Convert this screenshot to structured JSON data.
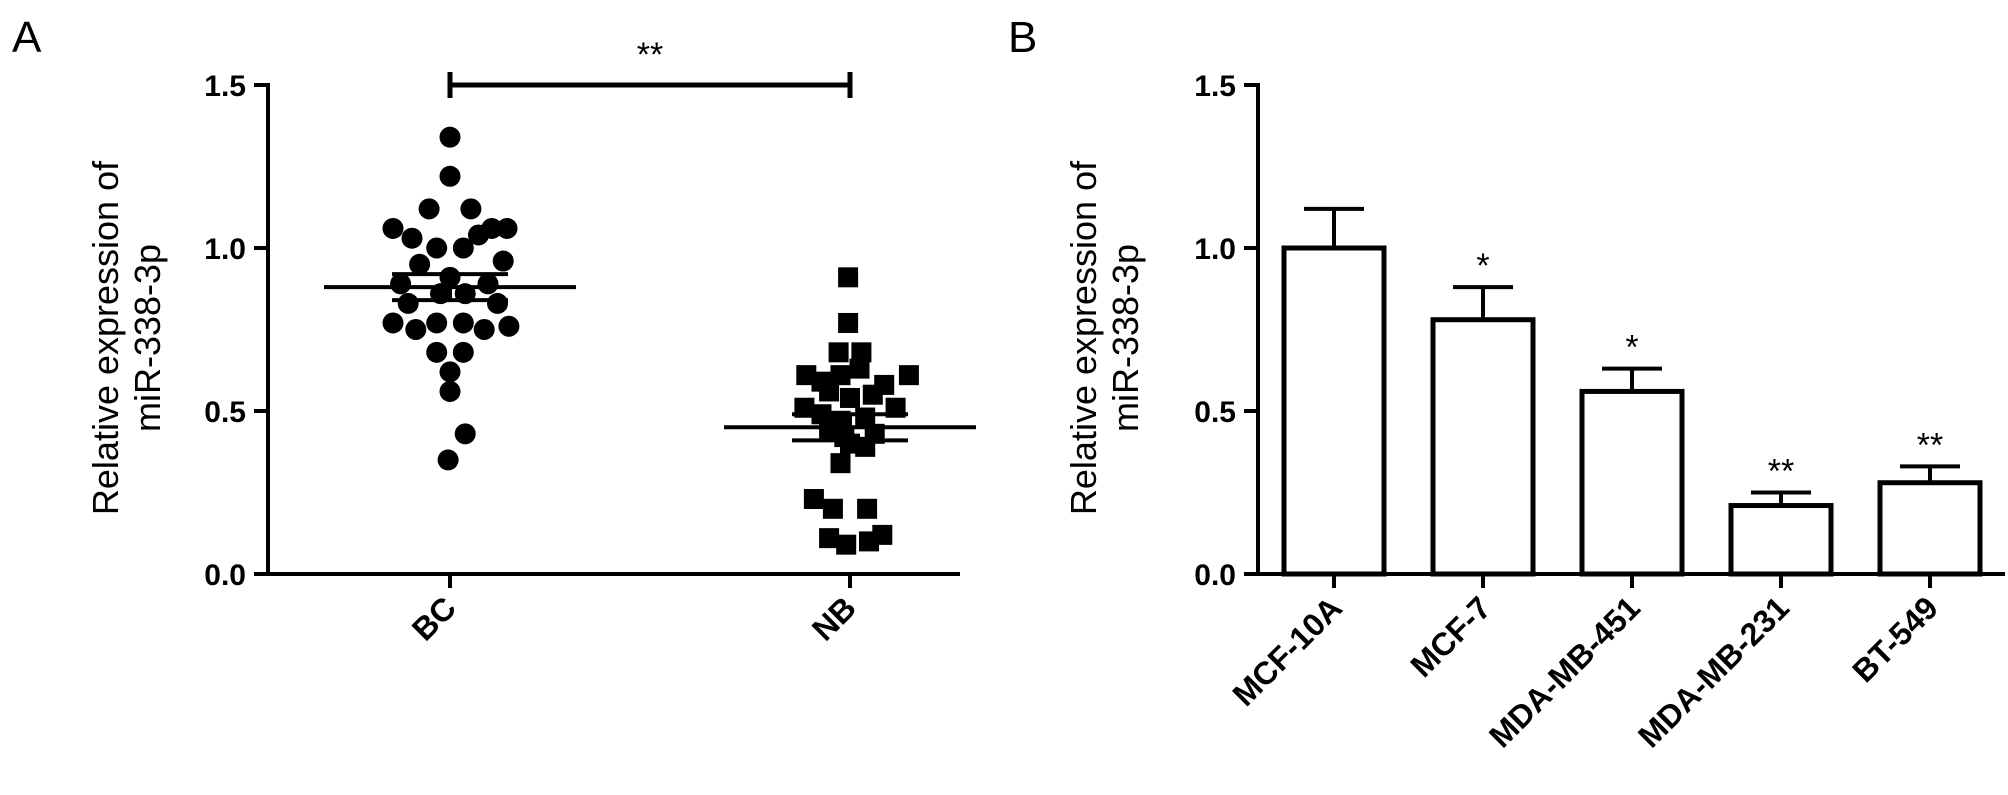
{
  "chart_data": [
    {
      "panel": "A",
      "type": "scatter",
      "ylabel_lines": [
        "Relative expression of",
        "miR-338-3p"
      ],
      "ylim": [
        0.0,
        1.5
      ],
      "yticks": [
        "0.0",
        "0.5",
        "1.0",
        "1.5"
      ],
      "categories": [
        "BC",
        "NB"
      ],
      "significance": "**",
      "groups": [
        {
          "category": "BC",
          "marker": "circle",
          "mean": 0.88,
          "sem": 0.04,
          "points": [
            {
              "x": 0.0,
              "y": 1.34
            },
            {
              "x": 0.0,
              "y": 1.22
            },
            {
              "x": -0.11,
              "y": 1.12
            },
            {
              "x": 0.11,
              "y": 1.12
            },
            {
              "x": -0.3,
              "y": 1.06
            },
            {
              "x": 0.22,
              "y": 1.06
            },
            {
              "x": 0.3,
              "y": 1.06
            },
            {
              "x": -0.2,
              "y": 1.03
            },
            {
              "x": 0.15,
              "y": 1.04
            },
            {
              "x": -0.07,
              "y": 1.0
            },
            {
              "x": 0.07,
              "y": 1.0
            },
            {
              "x": -0.16,
              "y": 0.95
            },
            {
              "x": 0.28,
              "y": 0.96
            },
            {
              "x": -0.26,
              "y": 0.89
            },
            {
              "x": 0.0,
              "y": 0.91
            },
            {
              "x": 0.2,
              "y": 0.89
            },
            {
              "x": -0.05,
              "y": 0.86
            },
            {
              "x": 0.08,
              "y": 0.86
            },
            {
              "x": -0.22,
              "y": 0.83
            },
            {
              "x": 0.25,
              "y": 0.83
            },
            {
              "x": -0.3,
              "y": 0.77
            },
            {
              "x": -0.07,
              "y": 0.77
            },
            {
              "x": 0.07,
              "y": 0.77
            },
            {
              "x": 0.31,
              "y": 0.76
            },
            {
              "x": -0.18,
              "y": 0.75
            },
            {
              "x": 0.18,
              "y": 0.75
            },
            {
              "x": -0.07,
              "y": 0.68
            },
            {
              "x": 0.07,
              "y": 0.68
            },
            {
              "x": 0.0,
              "y": 0.62
            },
            {
              "x": 0.0,
              "y": 0.56
            },
            {
              "x": 0.08,
              "y": 0.43
            },
            {
              "x": -0.01,
              "y": 0.35
            }
          ]
        },
        {
          "category": "NB",
          "marker": "square",
          "mean": 0.45,
          "sem": 0.04,
          "points": [
            {
              "x": -0.01,
              "y": 0.91
            },
            {
              "x": -0.01,
              "y": 0.77
            },
            {
              "x": -0.06,
              "y": 0.68
            },
            {
              "x": 0.06,
              "y": 0.68
            },
            {
              "x": -0.23,
              "y": 0.61
            },
            {
              "x": 0.31,
              "y": 0.61
            },
            {
              "x": -0.15,
              "y": 0.59
            },
            {
              "x": -0.05,
              "y": 0.61
            },
            {
              "x": 0.05,
              "y": 0.63
            },
            {
              "x": 0.18,
              "y": 0.58
            },
            {
              "x": -0.11,
              "y": 0.56
            },
            {
              "x": 0.0,
              "y": 0.54
            },
            {
              "x": 0.12,
              "y": 0.55
            },
            {
              "x": -0.24,
              "y": 0.51
            },
            {
              "x": 0.24,
              "y": 0.51
            },
            {
              "x": -0.15,
              "y": 0.49
            },
            {
              "x": -0.05,
              "y": 0.47
            },
            {
              "x": 0.08,
              "y": 0.48
            },
            {
              "x": -0.11,
              "y": 0.44
            },
            {
              "x": 0.13,
              "y": 0.43
            },
            {
              "x": -0.03,
              "y": 0.42
            },
            {
              "x": 0.0,
              "y": 0.4
            },
            {
              "x": 0.08,
              "y": 0.39
            },
            {
              "x": -0.05,
              "y": 0.34
            },
            {
              "x": -0.19,
              "y": 0.23
            },
            {
              "x": -0.09,
              "y": 0.2
            },
            {
              "x": 0.09,
              "y": 0.2
            },
            {
              "x": 0.17,
              "y": 0.12
            },
            {
              "x": -0.11,
              "y": 0.11
            },
            {
              "x": 0.1,
              "y": 0.1
            },
            {
              "x": -0.02,
              "y": 0.09
            }
          ]
        }
      ]
    },
    {
      "panel": "B",
      "type": "bar",
      "ylabel_lines": [
        "Relative expression of",
        "miR-338-3p"
      ],
      "ylim": [
        0.0,
        1.5
      ],
      "yticks": [
        "0.0",
        "0.5",
        "1.0",
        "1.5"
      ],
      "categories": [
        "MCF-10A",
        "MCF-7",
        "MDA-MB-451",
        "MDA-MB-231",
        "BT-549"
      ],
      "values": [
        1.0,
        0.78,
        0.56,
        0.21,
        0.28
      ],
      "errors": [
        0.12,
        0.1,
        0.07,
        0.04,
        0.05
      ],
      "significance": [
        "",
        "*",
        "*",
        "**",
        "**"
      ]
    }
  ]
}
